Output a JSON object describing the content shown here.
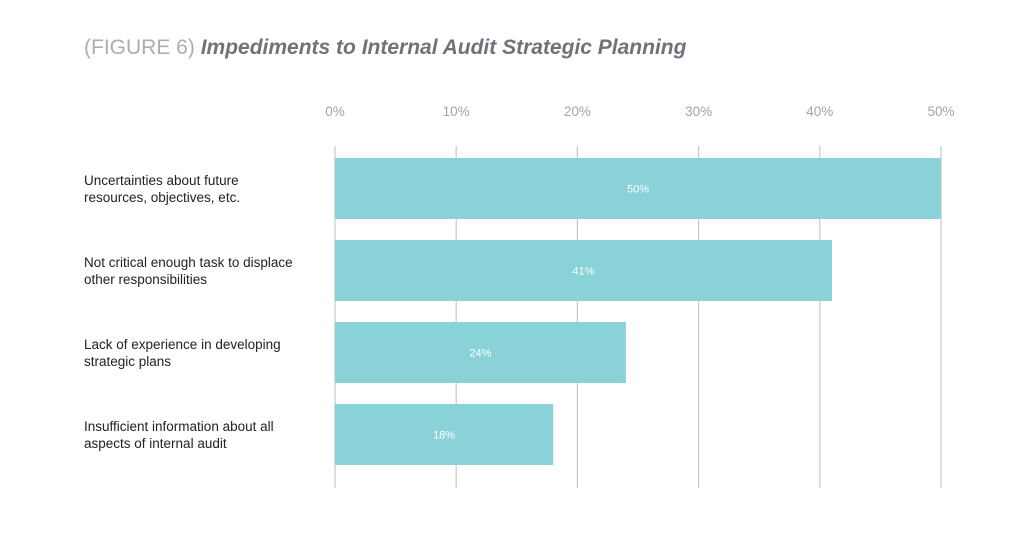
{
  "title": {
    "prefix": "(FIGURE 6)",
    "main": "Impediments to Internal Audit Strategic Planning"
  },
  "colors": {
    "bar": "#89d3d8",
    "grid": "#c9c9c9",
    "tick_label": "#a3a3a3",
    "value_label": "#ffffff",
    "category_label": "#222222"
  },
  "chart_data": {
    "type": "bar",
    "orientation": "horizontal",
    "categories": [
      "Uncertainties about future resources, objectives, etc.",
      "Not critical enough task to displace other responsibilities",
      "Lack of experience in developing strategic plans",
      "Insufficient information about all aspects of internal audit"
    ],
    "category_lines": [
      [
        "Uncertainties about future",
        "resources, objectives, etc."
      ],
      [
        "Not critical enough task to displace",
        "other responsibilities"
      ],
      [
        "Lack of experience in developing",
        "strategic plans"
      ],
      [
        "Insufficient information about all",
        "aspects of internal audit"
      ]
    ],
    "values": [
      50,
      41,
      24,
      18
    ],
    "value_labels": [
      "50%",
      "41%",
      "24%",
      "18%"
    ],
    "xlim": [
      0,
      50
    ],
    "xticks": [
      0,
      10,
      20,
      30,
      40,
      50
    ],
    "xtick_labels": [
      "0%",
      "10%",
      "20%",
      "30%",
      "40%",
      "50%"
    ],
    "x_axis_position": "top",
    "grid": true,
    "legend": false,
    "xlabel": "",
    "ylabel": ""
  }
}
